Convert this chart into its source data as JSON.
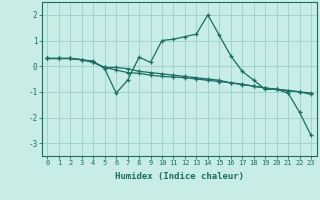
{
  "title": "",
  "xlabel": "Humidex (Indice chaleur)",
  "background_color": "#c8ece6",
  "grid_color": "#a0d4cc",
  "line_color": "#1a6e62",
  "xlim": [
    -0.5,
    23.5
  ],
  "ylim": [
    -3.5,
    2.5
  ],
  "yticks": [
    -3,
    -2,
    -1,
    0,
    1,
    2
  ],
  "xticks": [
    0,
    1,
    2,
    3,
    4,
    5,
    6,
    7,
    8,
    9,
    10,
    11,
    12,
    13,
    14,
    15,
    16,
    17,
    18,
    19,
    20,
    21,
    22,
    23
  ],
  "series": [
    [
      0.3,
      0.3,
      0.3,
      0.25,
      0.2,
      -0.1,
      -1.05,
      -0.55,
      0.35,
      0.15,
      1.0,
      1.05,
      1.15,
      1.25,
      2.0,
      1.2,
      0.4,
      -0.2,
      -0.55,
      -0.9,
      -0.9,
      -1.05,
      -1.8,
      -2.7
    ],
    [
      0.3,
      0.3,
      0.3,
      0.25,
      0.15,
      -0.05,
      -0.15,
      -0.25,
      -0.28,
      -0.35,
      -0.4,
      -0.42,
      -0.45,
      -0.5,
      -0.55,
      -0.6,
      -0.65,
      -0.7,
      -0.78,
      -0.85,
      -0.9,
      -0.95,
      -1.0,
      -1.05
    ],
    [
      0.3,
      0.3,
      0.3,
      0.25,
      0.15,
      -0.05,
      -0.05,
      -0.1,
      -0.2,
      -0.25,
      -0.3,
      -0.35,
      -0.4,
      -0.45,
      -0.5,
      -0.55,
      -0.65,
      -0.72,
      -0.78,
      -0.85,
      -0.9,
      -0.95,
      -1.0,
      -1.1
    ]
  ]
}
